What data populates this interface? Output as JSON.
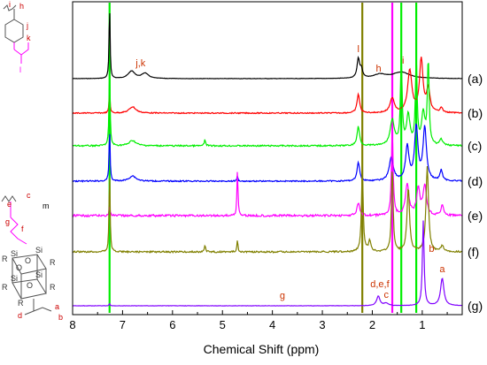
{
  "chart_data": {
    "type": "line",
    "xlabel": "Chemical Shift (ppm)",
    "xlim": [
      8.0,
      0.2
    ],
    "x_reversed": true,
    "x_ticks": [
      "8",
      "7",
      "6",
      "5",
      "4",
      "3",
      "2",
      "1"
    ],
    "x_tick_values": [
      8,
      7,
      6,
      5,
      4,
      3,
      2,
      1
    ],
    "grid": false,
    "legend": "none",
    "series": [
      {
        "name": "(a)",
        "color": "#000000",
        "peaks": [
          {
            "x": 7.26,
            "h": 3.5,
            "w": 0.012
          },
          {
            "x": 6.82,
            "h": 0.35,
            "w": 0.08
          },
          {
            "x": 6.55,
            "h": 0.25,
            "w": 0.08
          },
          {
            "x": 2.28,
            "h": 0.9,
            "w": 0.03
          },
          {
            "x": 2.22,
            "h": 0.4,
            "w": 0.03
          },
          {
            "x": 1.85,
            "h": 0.18,
            "w": 0.15
          },
          {
            "x": 1.42,
            "h": 0.3,
            "w": 0.2
          }
        ]
      },
      {
        "name": "(b)",
        "color": "#ff0000",
        "peaks": [
          {
            "x": 7.26,
            "h": 1.0,
            "w": 0.012
          },
          {
            "x": 6.8,
            "h": 0.3,
            "w": 0.08
          },
          {
            "x": 2.28,
            "h": 0.9,
            "w": 0.03
          },
          {
            "x": 1.6,
            "h": 0.7,
            "w": 0.05
          },
          {
            "x": 1.25,
            "h": 2.0,
            "w": 0.05
          },
          {
            "x": 1.02,
            "h": 2.5,
            "w": 0.04
          },
          {
            "x": 0.88,
            "h": 1.1,
            "w": 0.04
          },
          {
            "x": 0.62,
            "h": 0.25,
            "w": 0.03
          }
        ]
      },
      {
        "name": "(c)",
        "color": "#00ee00",
        "peaks": [
          {
            "x": 7.26,
            "h": 4.0,
            "w": 0.012
          },
          {
            "x": 6.8,
            "h": 0.25,
            "w": 0.08
          },
          {
            "x": 5.35,
            "h": 0.3,
            "w": 0.015
          },
          {
            "x": 2.28,
            "h": 0.9,
            "w": 0.03
          },
          {
            "x": 1.6,
            "h": 1.2,
            "w": 0.05
          },
          {
            "x": 1.42,
            "h": 4.0,
            "w": 0.02
          },
          {
            "x": 1.28,
            "h": 1.4,
            "w": 0.04
          },
          {
            "x": 1.12,
            "h": 4.0,
            "w": 0.02
          },
          {
            "x": 0.98,
            "h": 1.5,
            "w": 0.04
          },
          {
            "x": 0.88,
            "h": 4.0,
            "w": 0.02
          },
          {
            "x": 0.62,
            "h": 0.3,
            "w": 0.03
          }
        ]
      },
      {
        "name": "(d)",
        "color": "#0000ff",
        "peaks": [
          {
            "x": 7.26,
            "h": 2.5,
            "w": 0.012
          },
          {
            "x": 6.8,
            "h": 0.25,
            "w": 0.08
          },
          {
            "x": 4.7,
            "h": 0.25,
            "w": 0.012
          },
          {
            "x": 2.28,
            "h": 0.9,
            "w": 0.03
          },
          {
            "x": 1.62,
            "h": 1.1,
            "w": 0.05
          },
          {
            "x": 1.3,
            "h": 1.6,
            "w": 0.04
          },
          {
            "x": 1.12,
            "h": 2.5,
            "w": 0.04
          },
          {
            "x": 0.95,
            "h": 2.5,
            "w": 0.04
          },
          {
            "x": 0.62,
            "h": 0.5,
            "w": 0.03
          }
        ]
      },
      {
        "name": "(e)",
        "color": "#ff00ff",
        "peaks": [
          {
            "x": 7.26,
            "h": 0.5,
            "w": 0.012
          },
          {
            "x": 4.7,
            "h": 2.2,
            "w": 0.012
          },
          {
            "x": 2.28,
            "h": 0.6,
            "w": 0.03
          },
          {
            "x": 1.6,
            "h": 4.0,
            "w": 0.02
          },
          {
            "x": 1.3,
            "h": 1.5,
            "w": 0.04
          },
          {
            "x": 1.08,
            "h": 1.2,
            "w": 0.04
          },
          {
            "x": 0.95,
            "h": 1.4,
            "w": 0.04
          },
          {
            "x": 0.6,
            "h": 0.5,
            "w": 0.03
          }
        ]
      },
      {
        "name": "(f)",
        "color": "#808000",
        "peaks": [
          {
            "x": 7.26,
            "h": 4.0,
            "w": 0.012
          },
          {
            "x": 5.35,
            "h": 0.3,
            "w": 0.015
          },
          {
            "x": 4.7,
            "h": 0.6,
            "w": 0.012
          },
          {
            "x": 2.2,
            "h": 4.0,
            "w": 0.02
          },
          {
            "x": 2.05,
            "h": 0.5,
            "w": 0.03
          },
          {
            "x": 1.6,
            "h": 4.0,
            "w": 0.02
          },
          {
            "x": 1.28,
            "h": 3.0,
            "w": 0.03
          },
          {
            "x": 0.9,
            "h": 4.0,
            "w": 0.03
          },
          {
            "x": 0.6,
            "h": 0.3,
            "w": 0.03
          }
        ]
      },
      {
        "name": "(g)",
        "color": "#8000ff",
        "peaks": [
          {
            "x": 7.26,
            "h": 0.1,
            "w": 0.012
          },
          {
            "x": 1.88,
            "h": 0.45,
            "w": 0.04
          },
          {
            "x": 1.72,
            "h": 0.12,
            "w": 0.05
          },
          {
            "x": 0.98,
            "h": 4.0,
            "w": 0.02
          },
          {
            "x": 0.6,
            "h": 1.3,
            "w": 0.04
          }
        ]
      }
    ],
    "reference_lines": [
      {
        "x": 7.26,
        "color": "#00ee00"
      },
      {
        "x": 2.2,
        "color": "#808000"
      },
      {
        "x": 1.6,
        "color": "#ff00ff"
      },
      {
        "x": 1.42,
        "color": "#00ee00"
      },
      {
        "x": 1.12,
        "color": "#00ee00"
      }
    ],
    "annotations": [
      {
        "text": "j,k",
        "x": 6.55,
        "trace": 0,
        "color": "#cc3300"
      },
      {
        "text": "l",
        "x": 2.28,
        "trace": 0,
        "color": "#cc3300"
      },
      {
        "text": "h",
        "x": 1.82,
        "trace": 0,
        "color": "#cc3300"
      },
      {
        "text": "i",
        "x": 1.42,
        "trace": 0,
        "color": "#cc3300"
      },
      {
        "text": "b",
        "x": 0.92,
        "trace": 6,
        "color": "#cc3300"
      },
      {
        "text": "a",
        "x": 0.6,
        "trace": 6,
        "color": "#cc3300"
      },
      {
        "text": "g",
        "x": 3.8,
        "trace": 6,
        "color": "#cc3300"
      },
      {
        "text": "d,e,f",
        "x": 1.85,
        "trace": 6,
        "color": "#cc3300"
      },
      {
        "text": "c",
        "x": 1.72,
        "trace": 6,
        "color": "#cc3300"
      }
    ]
  },
  "structures": {
    "top": {
      "labels": [
        "i",
        "h",
        "j",
        "k",
        "l"
      ],
      "label_colors": [
        "#cc0000",
        "#cc0000",
        "#cc0000",
        "#cc0000",
        "#ff00ff"
      ],
      "bond_color": "#555555",
      "ester_color": "#ff00ff"
    },
    "bottom": {
      "labels": [
        "c",
        "e",
        "m",
        "g",
        "f",
        "a",
        "d",
        "b"
      ],
      "si_labels": [
        "Si",
        "Si",
        "Si",
        "Si"
      ],
      "o_labels": [
        "O",
        "O",
        "O"
      ],
      "r_labels": [
        "R",
        "R",
        "R",
        "R",
        "R"
      ],
      "label_colors": [
        "#cc0000",
        "#cc0000",
        "#000000",
        "#cc0000",
        "#cc0000",
        "#cc0000",
        "#cc0000",
        "#cc0000"
      ],
      "bond_color": "#555555",
      "chain_color": "#ff00ff"
    }
  }
}
